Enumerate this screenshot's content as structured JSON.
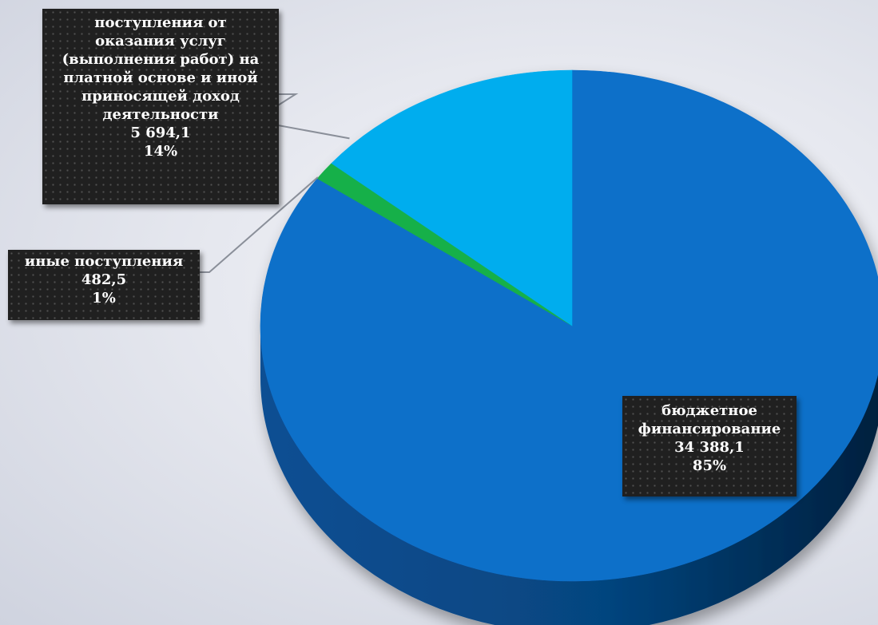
{
  "chart_data": {
    "type": "pie",
    "title": "",
    "slices": [
      {
        "label": "бюджетное финансирование",
        "label_lines": [
          "бюджетное",
          "финансирование"
        ],
        "value": 34388.1,
        "value_text": "34 388,1",
        "percent_text": "85%",
        "color": "#0a6fc9",
        "side_color": "#064a8a"
      },
      {
        "label": "иные поступления",
        "label_lines": [
          "иные поступления"
        ],
        "value": 482.5,
        "value_text": "482,5",
        "percent_text": "1%",
        "color": "#17b04a",
        "side_color": "#0e7a32"
      },
      {
        "label": "поступления от оказания услуг (выполнения работ) на платной основе и иной приносящей доход деятельности",
        "label_lines": [
          "поступления от",
          "оказания услуг",
          "(выполнения работ) на",
          "платной основе и иной",
          "приносящей доход",
          "деятельности"
        ],
        "value": 5694.1,
        "value_text": "5 694,1",
        "percent_text": "14%",
        "color": "#00adee",
        "side_color": "#0079a8"
      }
    ],
    "legend": "none",
    "style": "3d-tilted"
  }
}
